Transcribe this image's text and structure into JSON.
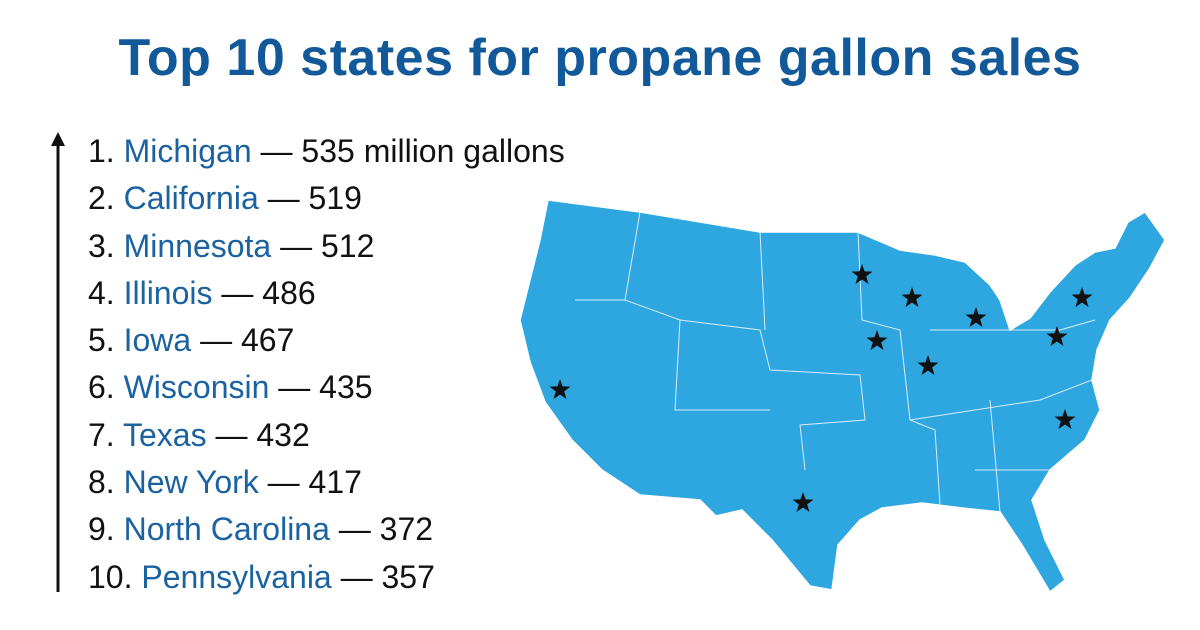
{
  "header": {
    "title": "Top 10 states for propane gallon sales"
  },
  "list": {
    "separator": "—",
    "items": [
      {
        "rank": "1.",
        "state": "Michigan",
        "value": 535,
        "unit": "million gallons"
      },
      {
        "rank": "2.",
        "state": "California",
        "value": 519
      },
      {
        "rank": "3.",
        "state": "Minnesota",
        "value": 512
      },
      {
        "rank": "4.",
        "state": "Illinois",
        "value": 486
      },
      {
        "rank": "5.",
        "state": "Iowa",
        "value": 467
      },
      {
        "rank": "6.",
        "state": "Wisconsin",
        "value": 435
      },
      {
        "rank": "7.",
        "state": "Texas",
        "value": 432
      },
      {
        "rank": "8.",
        "state": "New York",
        "value": 417
      },
      {
        "rank": "9.",
        "state": "North Carolina",
        "value": 372
      },
      {
        "rank": "10.",
        "state": "Pennsylvania",
        "value": 357
      }
    ]
  }
}
